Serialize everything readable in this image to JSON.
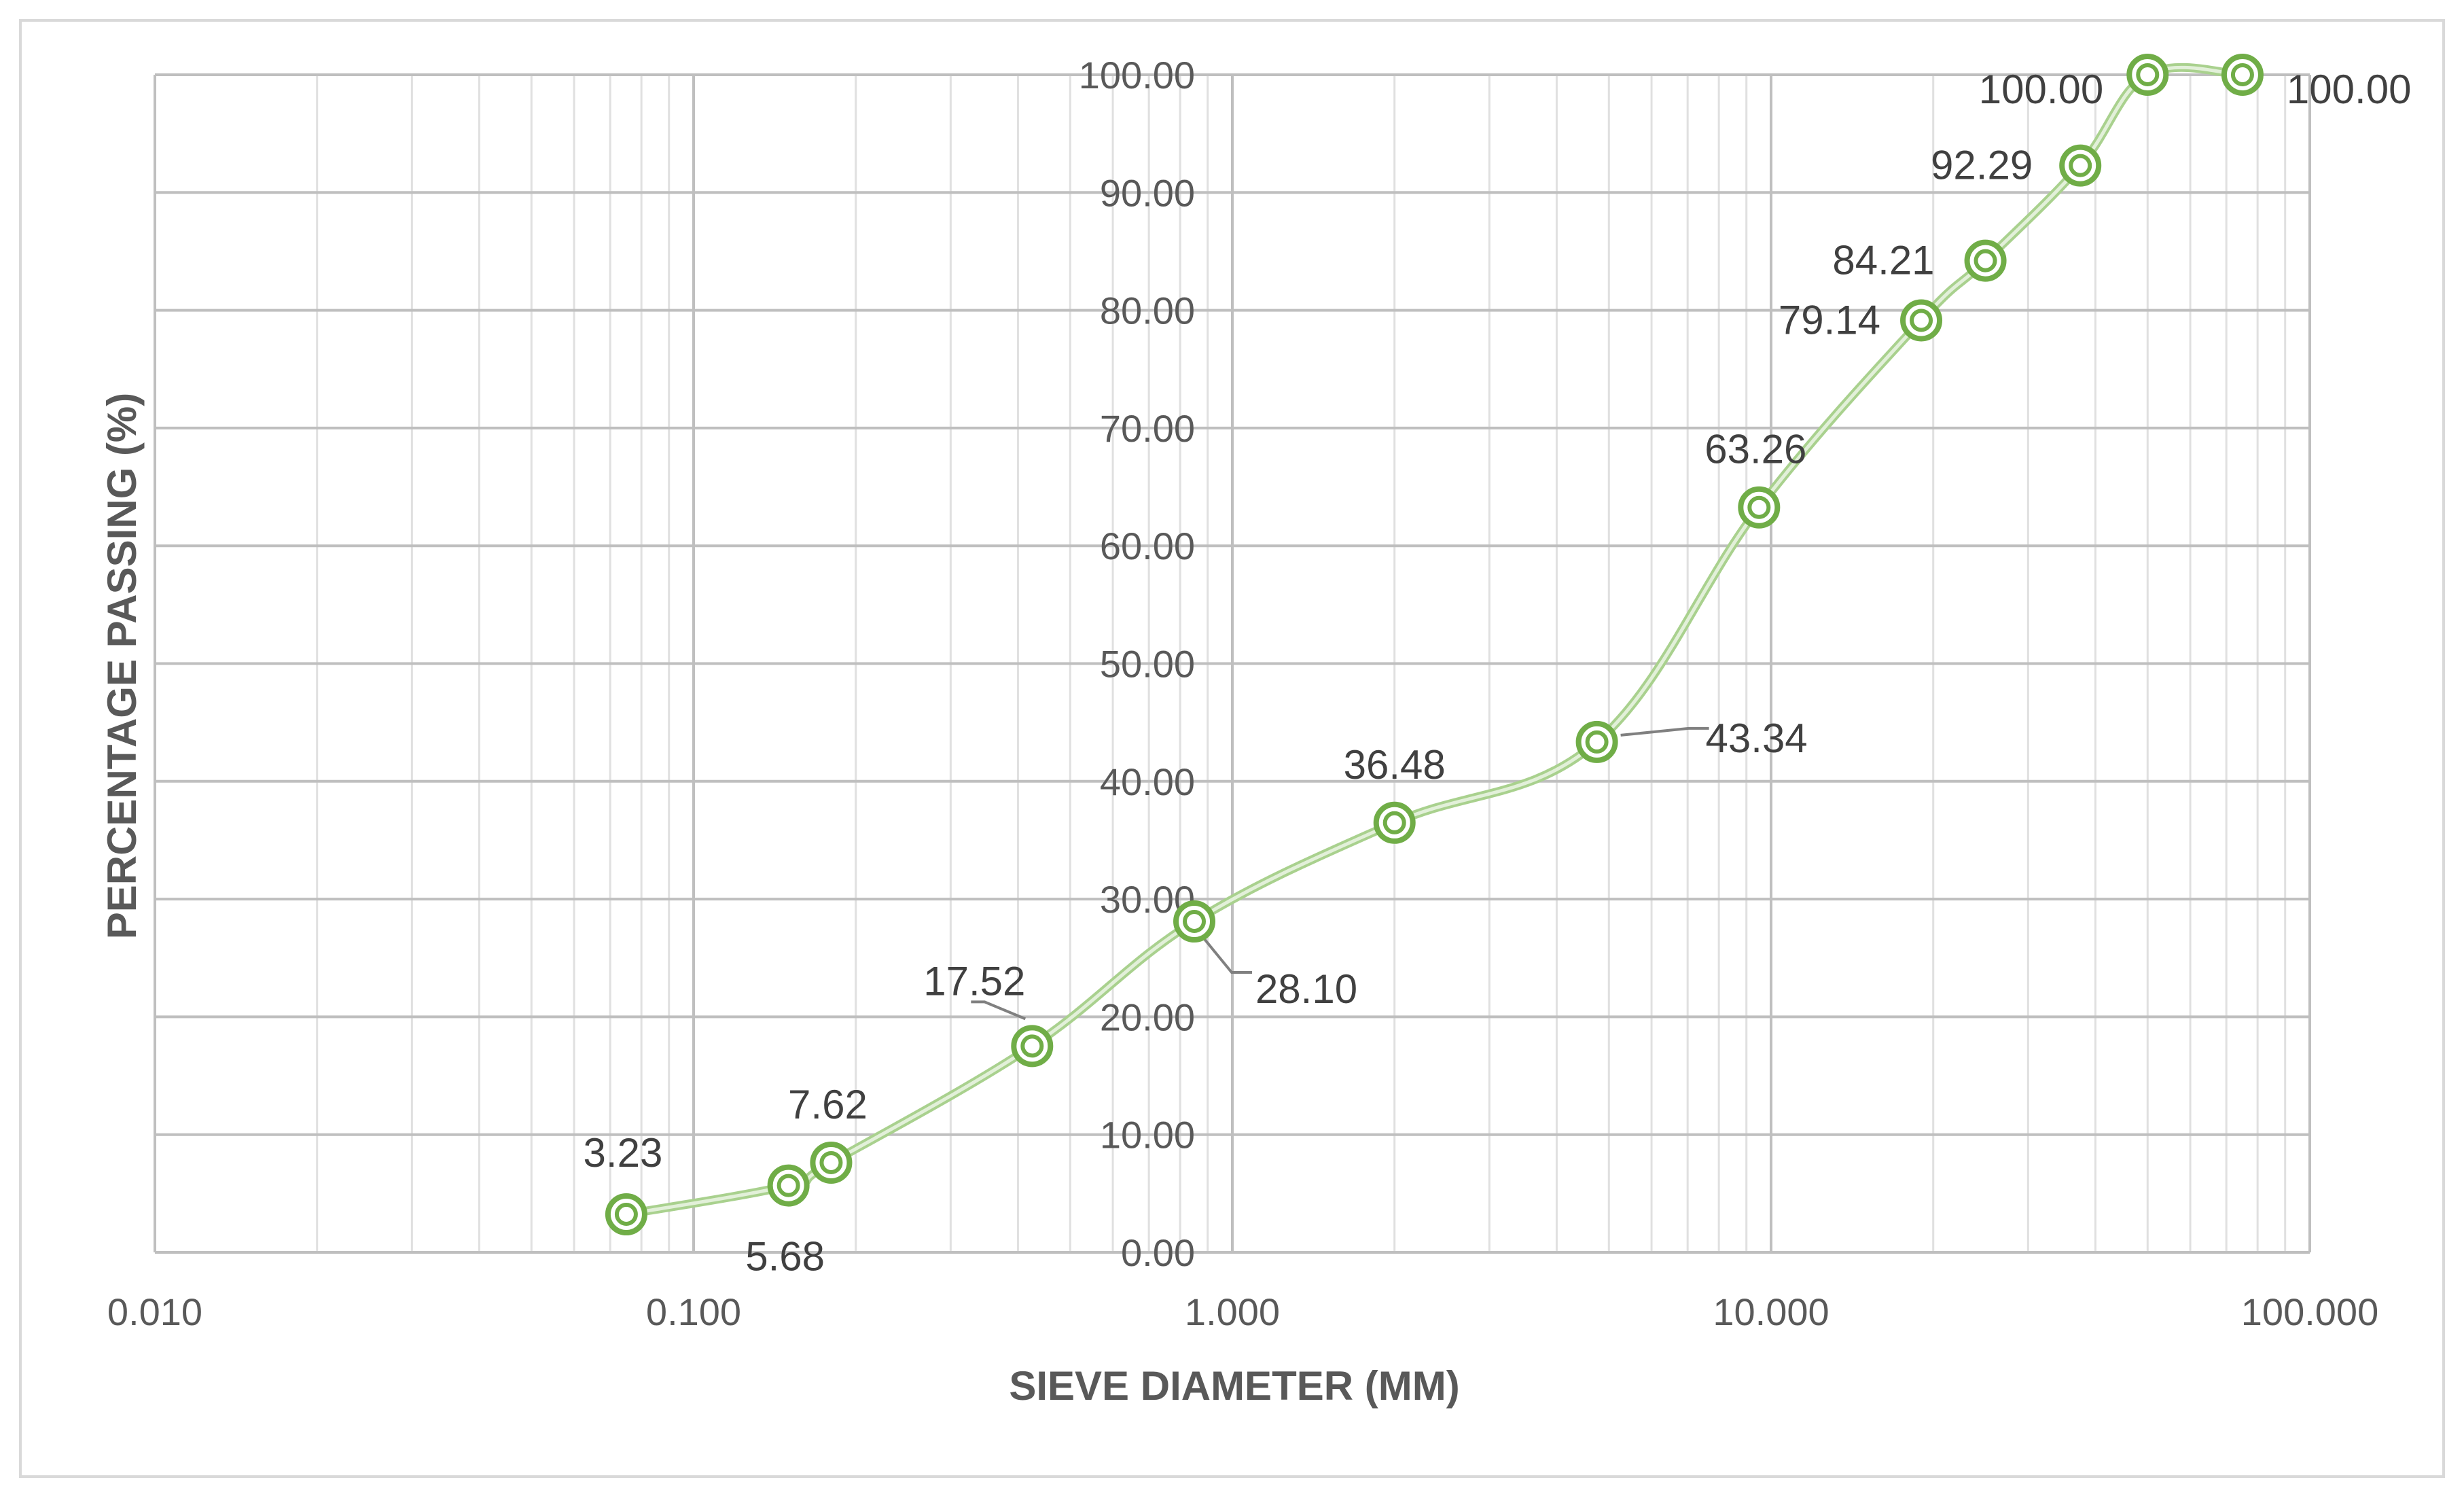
{
  "chart_data": {
    "type": "scatter",
    "title": "",
    "xlabel": "SIEVE DIAMETER (MM)",
    "ylabel": "PERCENTAGE PASSING (%)",
    "x_scale": "log",
    "xlim": [
      0.01,
      100
    ],
    "ylim": [
      0,
      100
    ],
    "x_ticks": [
      0.01,
      0.1,
      1,
      10,
      100
    ],
    "x_tick_labels": [
      "0.010",
      "0.100",
      "1.000",
      "10.000",
      "100.000"
    ],
    "y_ticks": [
      0,
      10,
      20,
      30,
      40,
      50,
      60,
      70,
      80,
      90,
      100
    ],
    "y_tick_labels": [
      "0.00",
      "10.00",
      "20.00",
      "30.00",
      "40.00",
      "50.00",
      "60.00",
      "70.00",
      "80.00",
      "90.00",
      "100.00"
    ],
    "grid": true,
    "line_smooth": true,
    "marker": "double-circle",
    "colors": {
      "line": "#a9d18e",
      "line_core": "#e2f0d9",
      "marker_outer": "#70ad47",
      "marker_inner": "#70ad47",
      "grid_major": "#bfbfbf",
      "grid_minor": "#e0e0e0",
      "leader": "#808080"
    },
    "series": [
      {
        "x": [
          0.075,
          0.15,
          0.18,
          0.425,
          0.85,
          2.0,
          4.75,
          9.5,
          19.0,
          25.0,
          37.5,
          50.0,
          75.0
        ],
        "y": [
          3.23,
          5.68,
          7.62,
          17.52,
          28.1,
          36.48,
          43.34,
          63.26,
          79.14,
          84.21,
          92.29,
          100.0,
          100.0
        ],
        "labels": [
          "3.23",
          "5.68",
          "7.62",
          "17.52",
          "28.10",
          "36.48",
          "43.34",
          "63.26",
          "79.14",
          "84.21",
          "92.29",
          "100.00",
          "100.00"
        ]
      }
    ]
  }
}
